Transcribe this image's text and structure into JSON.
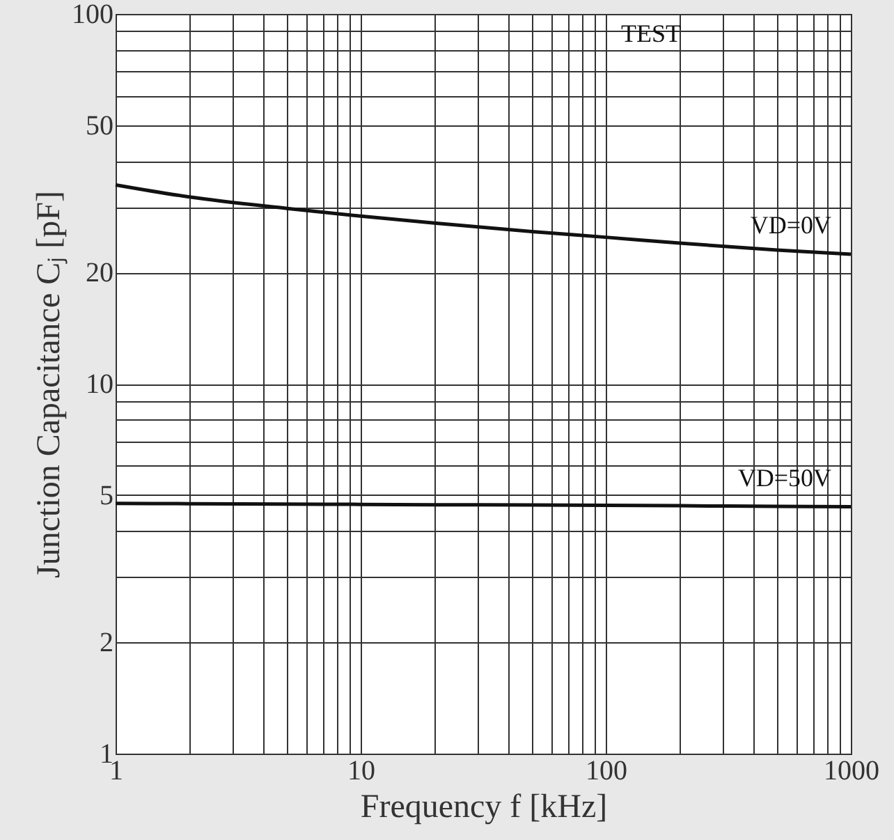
{
  "chart_data": {
    "type": "line",
    "xlabel": "Frequency  f [kHz]",
    "ylabel": "Junction Capacitance Cⱼ [pF]",
    "x": [
      1,
      2,
      5,
      10,
      20,
      50,
      100,
      200,
      500,
      1000
    ],
    "series": [
      {
        "name": "VD=0V",
        "color": "#111111",
        "values": [
          34.5,
          32.0,
          29.8,
          28.4,
          27.2,
          25.8,
          24.9,
          24.0,
          23.0,
          22.4
        ]
      },
      {
        "name": "VD=50V",
        "color": "#111111",
        "values": [
          4.75,
          4.74,
          4.73,
          4.72,
          4.71,
          4.7,
          4.69,
          4.68,
          4.66,
          4.65
        ]
      }
    ],
    "log": "xy",
    "xlim": [
      1,
      1000
    ],
    "ylim": [
      1,
      100
    ],
    "xticks": [
      1,
      {
        "value": 2,
        "label": null
      },
      {
        "value": 3,
        "label": null
      },
      {
        "value": 4,
        "label": null
      },
      {
        "value": 5,
        "label": null
      },
      {
        "value": 6,
        "label": null
      },
      {
        "value": 7,
        "label": null
      },
      {
        "value": 8,
        "label": null
      },
      {
        "value": 9,
        "label": null
      },
      10,
      {
        "value": 20,
        "label": null
      },
      {
        "value": 30,
        "label": null
      },
      {
        "value": 40,
        "label": null
      },
      {
        "value": 50,
        "label": null
      },
      {
        "value": 60,
        "label": null
      },
      {
        "value": 70,
        "label": null
      },
      {
        "value": 80,
        "label": null
      },
      {
        "value": 90,
        "label": null
      },
      100,
      {
        "value": 200,
        "label": null
      },
      {
        "value": 300,
        "label": null
      },
      {
        "value": 400,
        "label": null
      },
      {
        "value": 500,
        "label": null
      },
      {
        "value": 600,
        "label": null
      },
      {
        "value": 700,
        "label": null
      },
      {
        "value": 800,
        "label": null
      },
      {
        "value": 900,
        "label": null
      },
      1000
    ],
    "yticks": [
      1,
      2,
      {
        "value": 3,
        "label": null
      },
      {
        "value": 4,
        "label": null
      },
      5,
      {
        "value": 6,
        "label": null
      },
      {
        "value": 7,
        "label": null
      },
      {
        "value": 8,
        "label": null
      },
      {
        "value": 9,
        "label": null
      },
      10,
      20,
      {
        "value": 30,
        "label": null
      },
      {
        "value": 40,
        "label": null
      },
      50,
      {
        "value": 60,
        "label": null
      },
      {
        "value": 70,
        "label": null
      },
      {
        "value": 80,
        "label": null
      },
      {
        "value": 90,
        "label": null
      },
      100
    ],
    "grid": true,
    "marker": "none",
    "line_style": "solid",
    "annotations": [
      "TEST"
    ]
  }
}
